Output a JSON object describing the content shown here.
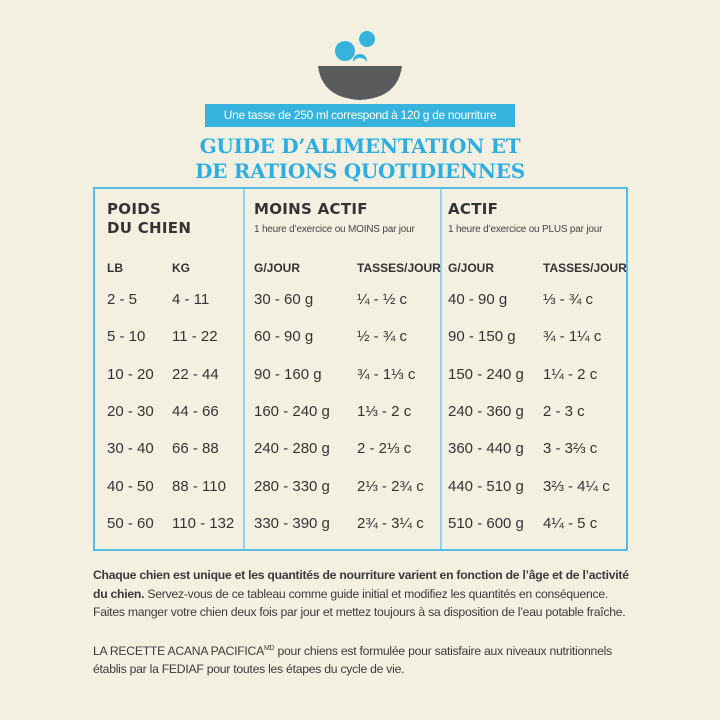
{
  "header": {
    "banner": "Une tasse de 250 ml correspond à 120 g de nourriture",
    "title_lines": [
      "GUIDE D’ALIMENTATION ET",
      "DE RATIONS QUOTIDIENNES"
    ]
  },
  "table": {
    "groups": [
      {
        "title": [
          "POIDS",
          "DU CHIEN"
        ]
      },
      {
        "title": [
          "MOINS ACTIF"
        ],
        "subtitle": "1 heure d’exercice ou MOINS par jour"
      },
      {
        "title": [
          "ACTIF"
        ],
        "subtitle": "1 heure d’exercice ou PLUS par jour"
      }
    ],
    "columns": [
      "LB",
      "KG",
      "G/JOUR",
      "TASSES/JOUR",
      "G/JOUR",
      "TASSES/JOUR"
    ],
    "rows": [
      [
        "2 - 5",
        "4 - 11",
        "30 - 60 g",
        "¼ - ½ c",
        "40 - 90 g",
        "⅓ - ¾ c"
      ],
      [
        "5 - 10",
        "11 - 22",
        "60 - 90 g",
        "½ - ¾ c",
        "90 - 150 g",
        "¾ - 1¼ c"
      ],
      [
        "10 - 20",
        "22 - 44",
        "90 - 160 g",
        "¾ - 1⅓ c",
        "150 - 240 g",
        "1¼ - 2 c"
      ],
      [
        "20 - 30",
        "44 - 66",
        "160 - 240 g",
        "1⅓ - 2 c",
        "240 - 360 g",
        "2 - 3 c"
      ],
      [
        "30 - 40",
        "66 - 88",
        "240 - 280 g",
        "2 - 2⅓ c",
        "360 - 440 g",
        "3 - 3⅔ c"
      ],
      [
        "40 - 50",
        "88 - 110",
        "280 - 330 g",
        "2⅓ - 2¾ c",
        "440 - 510 g",
        "3⅔ - 4¼ c"
      ],
      [
        "50 - 60",
        "110 - 132",
        "330 - 390 g",
        "2¾ - 3¼ c",
        "510 - 600 g",
        "4¼ - 5 c"
      ]
    ]
  },
  "notes": [
    {
      "bold": "Chaque chien est unique et les quantités de nourriture varient en fonction de l’âge et de l’activité du chien.",
      "text": " Servez-vous de ce tableau comme guide initial et modifiez les quantités en conséquence. Faites manger votre chien deux fois par jour et mettez toujours à sa disposition de l’eau potable fraîche."
    },
    {
      "text": "LA RECETTE ACANA PACIFICA",
      "sup": "MD",
      "rest": " pour chiens est formulée pour satisfaire aux niveaux nutritionnels établis par la FEDIAF pour toutes les étapes du cycle de vie."
    }
  ]
}
